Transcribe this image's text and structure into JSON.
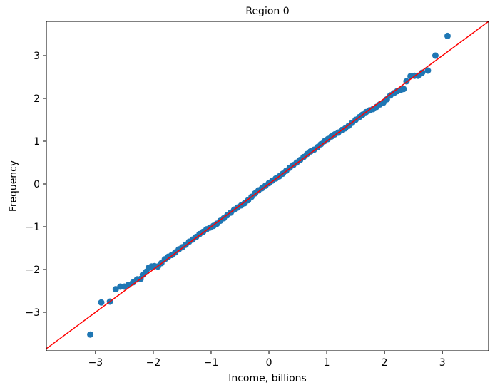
{
  "chart_data": {
    "type": "scatter",
    "title": "Region 0",
    "xlabel": "Income, billions",
    "ylabel": "Frequency",
    "xlim": [
      -3.85,
      3.8
    ],
    "ylim": [
      -3.9,
      3.8
    ],
    "xticks": [
      -3,
      -2,
      -1,
      0,
      1,
      2,
      3
    ],
    "yticks": [
      -3,
      -2,
      -1,
      0,
      1,
      2,
      3
    ],
    "xtick_labels": [
      "−3",
      "−2",
      "−1",
      "0",
      "1",
      "2",
      "3"
    ],
    "ytick_labels": [
      "−3",
      "−2",
      "−1",
      "0",
      "1",
      "2",
      "3"
    ],
    "grid": false,
    "legend": "none",
    "point_color": "#1f77b4",
    "line_color": "#ff0000",
    "reference_line": {
      "slope": 1,
      "intercept": 0
    },
    "series": [
      {
        "x": [
          -3.09,
          -2.9,
          -2.75,
          -2.65,
          -2.57,
          -2.5,
          -2.43,
          -2.35,
          -2.28,
          -2.22,
          -2.18,
          -2.12,
          -2.08,
          -2.03,
          -1.98,
          -1.92,
          -1.86,
          -1.8,
          -1.74,
          -1.68,
          -1.62,
          -1.56,
          -1.5,
          -1.44,
          -1.38,
          -1.32,
          -1.26,
          -1.2,
          -1.14,
          -1.08,
          -1.02,
          -0.96,
          -0.9,
          -0.84,
          -0.78,
          -0.72,
          -0.66,
          -0.6,
          -0.54,
          -0.48,
          -0.42,
          -0.36,
          -0.3,
          -0.24,
          -0.18,
          -0.12,
          -0.06,
          0.0,
          0.06,
          0.12,
          0.18,
          0.24,
          0.3,
          0.36,
          0.42,
          0.48,
          0.54,
          0.6,
          0.66,
          0.72,
          0.78,
          0.84,
          0.9,
          0.96,
          1.02,
          1.08,
          1.14,
          1.2,
          1.26,
          1.32,
          1.38,
          1.44,
          1.5,
          1.56,
          1.62,
          1.68,
          1.74,
          1.8,
          1.86,
          1.92,
          1.98,
          2.04,
          2.1,
          2.16,
          2.22,
          2.28,
          2.33,
          2.38,
          2.45,
          2.52,
          2.58,
          2.65,
          2.75,
          2.88,
          3.09
        ],
        "y": [
          -3.52,
          -2.77,
          -2.75,
          -2.46,
          -2.4,
          -2.4,
          -2.36,
          -2.3,
          -2.23,
          -2.22,
          -2.12,
          -2.05,
          -1.96,
          -1.93,
          -1.92,
          -1.93,
          -1.85,
          -1.76,
          -1.7,
          -1.66,
          -1.6,
          -1.53,
          -1.48,
          -1.42,
          -1.35,
          -1.3,
          -1.24,
          -1.17,
          -1.12,
          -1.06,
          -1.02,
          -0.98,
          -0.93,
          -0.86,
          -0.8,
          -0.73,
          -0.67,
          -0.6,
          -0.55,
          -0.5,
          -0.45,
          -0.38,
          -0.3,
          -0.22,
          -0.15,
          -0.1,
          -0.04,
          0.02,
          0.08,
          0.13,
          0.18,
          0.24,
          0.31,
          0.38,
          0.44,
          0.5,
          0.56,
          0.63,
          0.7,
          0.76,
          0.8,
          0.86,
          0.93,
          1.0,
          1.05,
          1.11,
          1.16,
          1.2,
          1.26,
          1.3,
          1.36,
          1.43,
          1.5,
          1.56,
          1.62,
          1.68,
          1.72,
          1.75,
          1.8,
          1.86,
          1.9,
          1.98,
          2.07,
          2.12,
          2.17,
          2.2,
          2.22,
          2.4,
          2.52,
          2.53,
          2.53,
          2.6,
          2.65,
          3.0,
          3.46
        ]
      }
    ]
  }
}
